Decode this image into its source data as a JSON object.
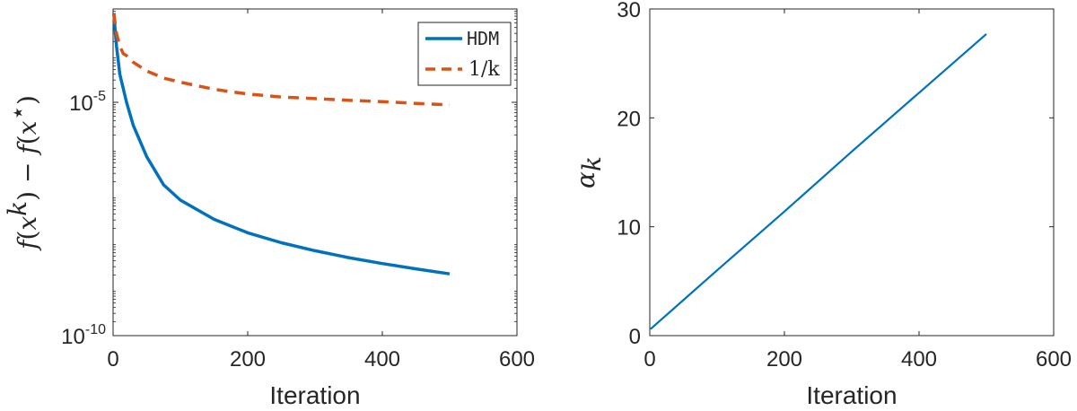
{
  "chart_data": [
    {
      "type": "line",
      "title": "",
      "xlabel": "Iteration",
      "ylabel": "f(x^k) − f(x^⋆)",
      "yscale": "log",
      "xlim": [
        0,
        600
      ],
      "ylim": [
        1e-10,
        0.001
      ],
      "xticks": [
        0,
        200,
        400,
        600
      ],
      "xtick_labels": [
        "0",
        "200",
        "400",
        "600"
      ],
      "yticks": [
        1e-10,
        1e-05
      ],
      "ytick_labels": [
        {
          "base": "10",
          "exp": "-10"
        },
        {
          "base": "10",
          "exp": "-5"
        }
      ],
      "legend_position": "top-right",
      "legend": [
        "HDM",
        "1/k"
      ],
      "series": [
        {
          "name": "HDM",
          "style": "solid",
          "color": "#0072BD",
          "x": [
            1,
            5,
            10,
            20,
            30,
            50,
            75,
            100,
            150,
            200,
            250,
            300,
            350,
            400,
            450,
            500
          ],
          "y": [
            0.0008,
            0.00016,
            4e-05,
            1e-05,
            3.2e-06,
            6.8e-07,
            1.7e-07,
            8e-08,
            3.1e-08,
            1.6e-08,
            9.8e-09,
            6.6e-09,
            4.7e-09,
            3.5e-09,
            2.7e-09,
            2.1e-09
          ]
        },
        {
          "name": "1/k",
          "style": "dashed",
          "color": "#D95319",
          "x": [
            1,
            5,
            10,
            15,
            20,
            30,
            50,
            75,
            100,
            150,
            200,
            250,
            300,
            350,
            400,
            450,
            500
          ],
          "y": [
            0.0008,
            0.0003,
            0.00016,
            0.00011,
            0.0001,
            7.2e-05,
            4.7e-05,
            3.3e-05,
            2.7e-05,
            1.9e-05,
            1.5e-05,
            1.3e-05,
            1.2e-05,
            1.1e-05,
            1.03e-05,
            9.5e-06,
            8.8e-06
          ]
        }
      ]
    },
    {
      "type": "line",
      "title": "",
      "xlabel": "Iteration",
      "ylabel": "α_k",
      "xlim": [
        0,
        600
      ],
      "ylim": [
        0,
        30
      ],
      "xticks": [
        0,
        200,
        400,
        600
      ],
      "xtick_labels": [
        "0",
        "200",
        "400",
        "600"
      ],
      "yticks": [
        0,
        10,
        20,
        30
      ],
      "ytick_labels": [
        "0",
        "10",
        "20",
        "30"
      ],
      "series": [
        {
          "style": "solid",
          "color": "#0072BD",
          "x": [
            1,
            100,
            200,
            300,
            400,
            500
          ],
          "y": [
            0.6,
            6.0,
            11.4,
            16.9,
            22.3,
            27.7
          ]
        }
      ]
    }
  ],
  "labels": {
    "left_ylabel_parts": [
      "f",
      "(",
      "x",
      "k",
      ") − ",
      "f",
      "(",
      "x",
      "⋆",
      ")"
    ],
    "right_ylabel_parts": [
      "α",
      "k"
    ]
  }
}
